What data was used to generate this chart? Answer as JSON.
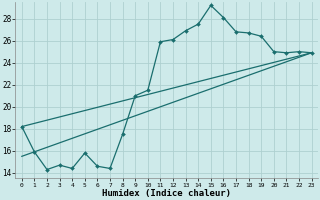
{
  "xlabel": "Humidex (Indice chaleur)",
  "bg_color": "#ceeaea",
  "grid_color": "#aed0d0",
  "line_color": "#1a6e6e",
  "xlim": [
    -0.5,
    23.5
  ],
  "ylim": [
    13.5,
    29.5
  ],
  "xticks": [
    0,
    1,
    2,
    3,
    4,
    5,
    6,
    7,
    8,
    9,
    10,
    11,
    12,
    13,
    14,
    15,
    16,
    17,
    18,
    19,
    20,
    21,
    22,
    23
  ],
  "yticks": [
    14,
    16,
    18,
    20,
    22,
    24,
    26,
    28
  ],
  "series1_x": [
    0,
    1,
    2,
    3,
    4,
    5,
    6,
    7,
    8,
    9,
    10,
    11,
    12,
    13,
    14,
    15,
    16,
    17,
    18,
    19,
    20,
    21,
    22,
    23
  ],
  "series1_y": [
    18.2,
    15.9,
    14.3,
    14.7,
    14.4,
    15.8,
    14.6,
    14.4,
    17.5,
    21.0,
    21.5,
    25.9,
    26.1,
    26.9,
    27.5,
    29.2,
    28.1,
    26.8,
    26.7,
    26.4,
    25.0,
    24.9,
    25.0,
    24.9
  ],
  "series2_x": [
    0,
    23
  ],
  "series2_y": [
    18.2,
    24.9
  ],
  "series3_x": [
    0,
    23
  ],
  "series3_y": [
    15.5,
    24.9
  ],
  "xtick_labels": [
    "0",
    "1",
    "2",
    "3",
    "4",
    "5",
    "6",
    "7",
    "8",
    "9",
    "10",
    "11",
    "12",
    "13",
    "14",
    "15",
    "16",
    "17",
    "18",
    "19",
    "20",
    "21",
    "22",
    "23"
  ],
  "ytick_labels": [
    "14",
    "16",
    "18",
    "20",
    "22",
    "24",
    "26",
    "28"
  ]
}
